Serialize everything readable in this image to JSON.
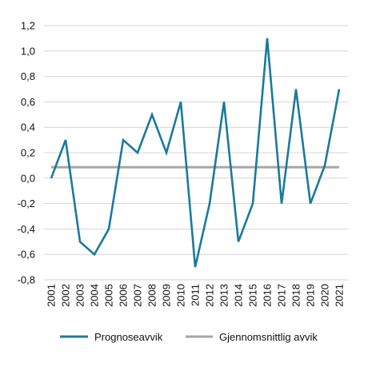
{
  "chart_data": {
    "type": "line",
    "title": "",
    "xlabel": "",
    "ylabel": "",
    "categories": [
      "2001",
      "2002",
      "2003",
      "2004",
      "2005",
      "2006",
      "2007",
      "2008",
      "2009",
      "2010",
      "2011",
      "2012",
      "2013",
      "2014",
      "2015",
      "2016",
      "2017",
      "2018",
      "2019",
      "2020",
      "2021"
    ],
    "ylim": [
      -0.8,
      1.2
    ],
    "yticks": [
      -0.8,
      -0.6,
      -0.4,
      -0.2,
      0.0,
      0.2,
      0.4,
      0.6,
      0.8,
      1.0,
      1.2
    ],
    "ytick_labels": [
      "-0,8",
      "-0,6",
      "-0,4",
      "-0,2",
      "0,0",
      "0,2",
      "0,4",
      "0,6",
      "0,8",
      "1,0",
      "1,2"
    ],
    "grid": "horizontal",
    "legend_position": "bottom",
    "series": [
      {
        "name": "Prognoseavvik",
        "color": "#1a7a9c",
        "values": [
          0.0,
          0.3,
          -0.5,
          -0.6,
          -0.4,
          0.3,
          0.2,
          0.5,
          0.2,
          0.6,
          -0.7,
          -0.2,
          0.6,
          -0.5,
          -0.2,
          1.1,
          -0.2,
          0.7,
          -0.2,
          0.1,
          0.7
        ]
      },
      {
        "name": "Gjennomsnittlig avvik",
        "color": "#a6a6a6",
        "values": [
          0.086,
          0.086,
          0.086,
          0.086,
          0.086,
          0.086,
          0.086,
          0.086,
          0.086,
          0.086,
          0.086,
          0.086,
          0.086,
          0.086,
          0.086,
          0.086,
          0.086,
          0.086,
          0.086,
          0.086,
          0.086
        ]
      }
    ]
  }
}
